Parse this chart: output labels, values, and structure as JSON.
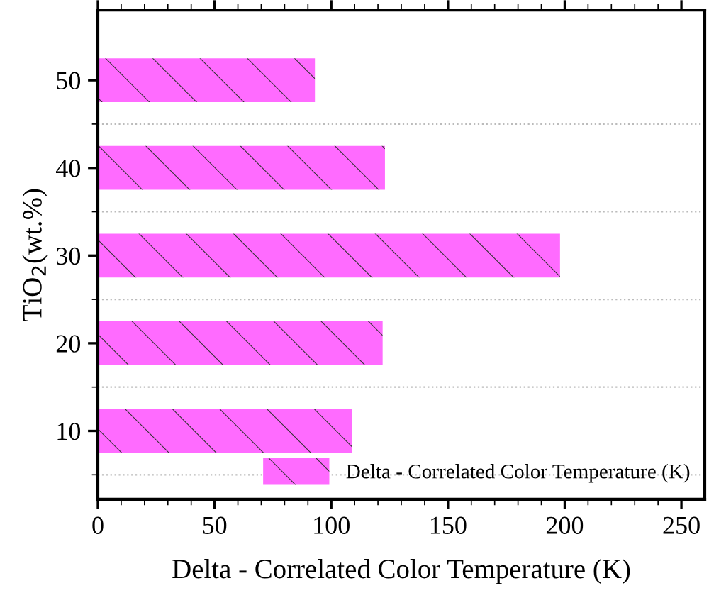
{
  "chart_data": {
    "type": "bar",
    "orientation": "horizontal",
    "xlabel": "Delta - Correlated Color Temperature (K)",
    "ylabel": "TiO$_{2}$(wt.%)",
    "categories": [
      "50",
      "40",
      "30",
      "20",
      "10"
    ],
    "series": [
      {
        "name": "Delta - Correlated Color Temperature (K)",
        "color": "#ff6bff",
        "values": [
          93,
          123,
          198,
          122,
          109
        ]
      }
    ],
    "xlim": [
      0,
      260
    ],
    "xticks": [
      0,
      50,
      100,
      150,
      200,
      250
    ],
    "grid": "y",
    "legend": "bottom right"
  }
}
